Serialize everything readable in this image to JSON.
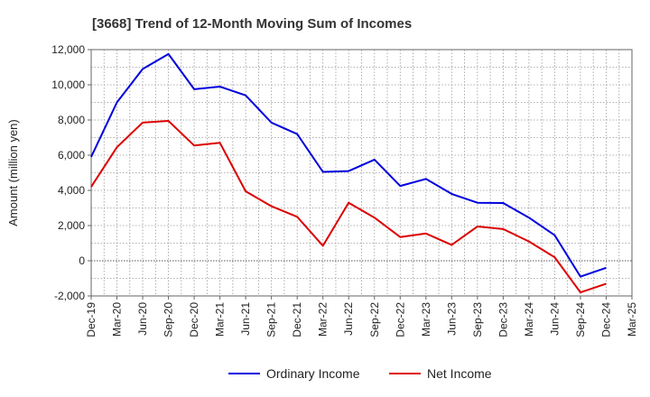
{
  "chart_data": {
    "type": "line",
    "title": "[3668]  Trend of 12-Month Moving Sum of Incomes",
    "ylabel": "Amount (million yen)",
    "xlabel": "",
    "ylim": [
      -2000,
      12000
    ],
    "yticks": [
      -2000,
      0,
      2000,
      4000,
      6000,
      8000,
      10000,
      12000
    ],
    "ytick_labels": [
      "-2,000",
      "0",
      "2,000",
      "4,000",
      "6,000",
      "8,000",
      "10,000",
      "12,000"
    ],
    "categories": [
      "Dec-19",
      "Mar-20",
      "Jun-20",
      "Sep-20",
      "Dec-20",
      "Mar-21",
      "Jun-21",
      "Sep-21",
      "Dec-21",
      "Mar-22",
      "Jun-22",
      "Sep-22",
      "Dec-22",
      "Mar-23",
      "Jun-23",
      "Sep-23",
      "Dec-23",
      "Mar-24",
      "Jun-24",
      "Sep-24",
      "Dec-24",
      "Mar-25"
    ],
    "grid": true,
    "legend_position": "bottom",
    "series": [
      {
        "name": "Ordinary Income",
        "color": "#0000dd",
        "values": [
          5900,
          9000,
          10900,
          11750,
          9750,
          9900,
          9400,
          7850,
          7200,
          5050,
          5100,
          5750,
          4250,
          4650,
          3800,
          3300,
          3280,
          2450,
          1450,
          -900,
          -400,
          null
        ]
      },
      {
        "name": "Net Income",
        "color": "#dd0000",
        "values": [
          4200,
          6450,
          7850,
          7950,
          6550,
          6700,
          3950,
          3100,
          2500,
          850,
          3300,
          2450,
          1350,
          1550,
          900,
          1950,
          1800,
          1100,
          200,
          -1800,
          -1300,
          null
        ]
      }
    ]
  }
}
